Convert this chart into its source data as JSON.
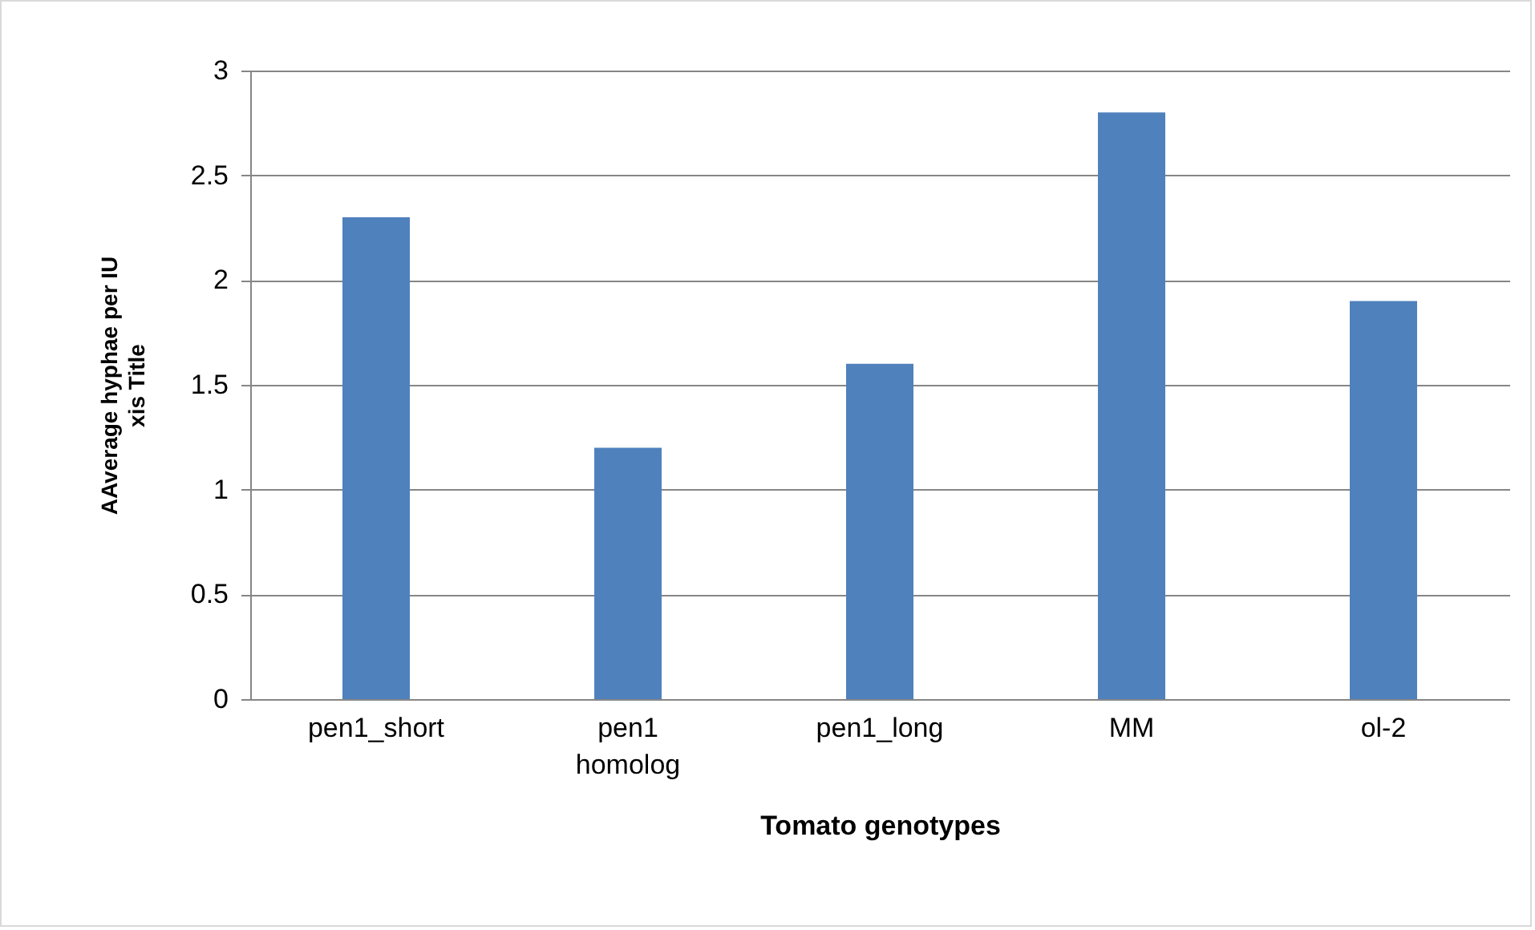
{
  "chart_data": {
    "type": "bar",
    "xlabel": "Tomato genotypes",
    "ylabel": "AAverage hyphae per IU\nxis Title",
    "categories": [
      "pen1_short",
      "pen1 homolog",
      "pen1_long",
      "MM",
      "ol-2"
    ],
    "values": [
      2.3,
      1.2,
      1.6,
      2.8,
      1.9
    ],
    "color": "#4f81bd",
    "ylim": [
      0,
      3
    ],
    "yticks": [
      0,
      0.5,
      1,
      1.5,
      2,
      2.5,
      3
    ],
    "grid": "y"
  }
}
